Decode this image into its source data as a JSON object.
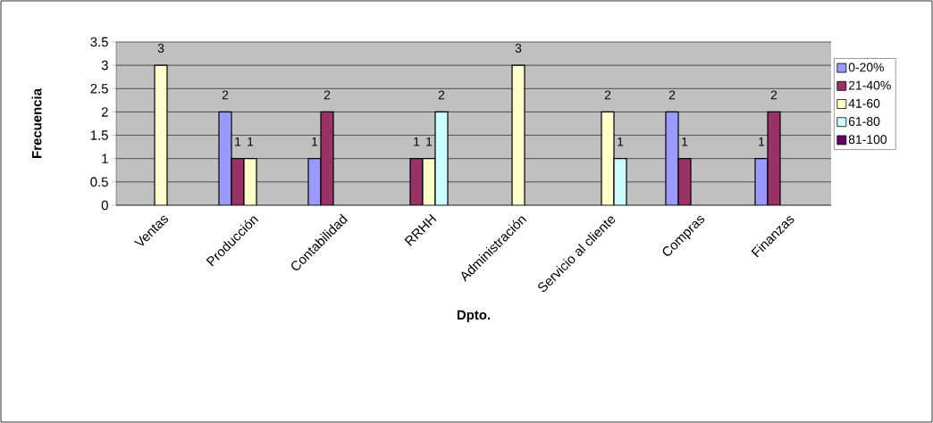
{
  "chart_data": {
    "type": "bar",
    "xlabel": "Dpto.",
    "ylabel": "Frecuencia",
    "categories": [
      "Ventas",
      "Producción",
      "Contabilidad",
      "RRHH",
      "Administración",
      "Servicio al cliente",
      "Compras",
      "Finanzas"
    ],
    "series": [
      {
        "name": "0-20%",
        "color": "#9999ff",
        "values": [
          null,
          2,
          1,
          null,
          null,
          null,
          2,
          1
        ]
      },
      {
        "name": "21-40%",
        "color": "#993366",
        "values": [
          null,
          1,
          2,
          1,
          null,
          null,
          1,
          2
        ]
      },
      {
        "name": "41-60",
        "color": "#ffffcc",
        "values": [
          3,
          1,
          null,
          1,
          3,
          2,
          null,
          null
        ]
      },
      {
        "name": "61-80",
        "color": "#ccffff",
        "values": [
          null,
          null,
          null,
          2,
          null,
          1,
          null,
          null
        ]
      },
      {
        "name": "81-100",
        "color": "#660066",
        "values": [
          null,
          null,
          null,
          null,
          null,
          null,
          null,
          null
        ]
      }
    ],
    "ylim": [
      0,
      3.5
    ],
    "yticks": [
      0,
      0.5,
      1,
      1.5,
      2,
      2.5,
      3,
      3.5
    ],
    "grid": "y",
    "legend": "right",
    "data_labels": true
  }
}
